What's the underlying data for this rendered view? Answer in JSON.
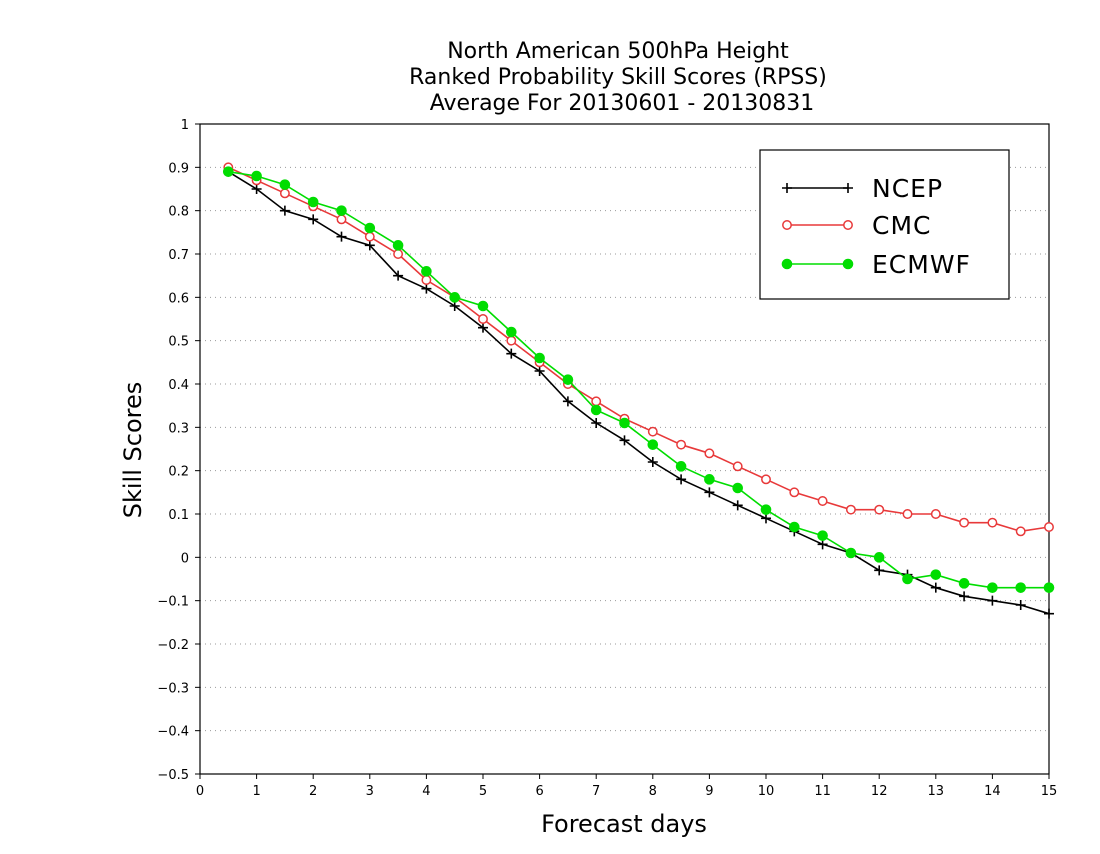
{
  "chart_data": {
    "type": "line",
    "title_lines": [
      "North American 500hPa Height",
      "Ranked Probability Skill Scores (RPSS)",
      "Average For 20130601 - 20130831"
    ],
    "xlabel": "Forecast days",
    "ylabel": "Skill Scores",
    "xlim": [
      0,
      15
    ],
    "ylim": [
      -0.5,
      1
    ],
    "x_ticks": [
      0,
      1,
      2,
      3,
      4,
      5,
      6,
      7,
      8,
      9,
      10,
      11,
      12,
      13,
      14,
      15
    ],
    "x_tick_labels": [
      "0",
      "1",
      "2",
      "3",
      "4",
      "5",
      "6",
      "7",
      "8",
      "9",
      "10",
      "11",
      "12",
      "13",
      "14",
      "15"
    ],
    "y_ticks": [
      1,
      0.9,
      0.8,
      0.7,
      0.6,
      0.5,
      0.4,
      0.3,
      0.2,
      0.1,
      0,
      -0.1,
      -0.2,
      -0.3,
      -0.4,
      -0.5
    ],
    "y_tick_labels": [
      "1",
      "0.9",
      "0.8",
      "0.7",
      "0.6",
      "0.5",
      "0.4",
      "0.3",
      "0.2",
      "0.1",
      "0",
      "−0.1",
      "−0.2",
      "−0.3",
      "−0.4",
      "−0.5"
    ],
    "grid": "horizontal dotted",
    "legend_position": "top-right",
    "x": [
      0.5,
      1.0,
      1.5,
      2.0,
      2.5,
      3.0,
      3.5,
      4.0,
      4.5,
      5.0,
      5.5,
      6.0,
      6.5,
      7.0,
      7.5,
      8.0,
      8.5,
      9.0,
      9.5,
      10.0,
      10.5,
      11.0,
      11.5,
      12.0,
      12.5,
      13.0,
      13.5,
      14.0,
      14.5,
      15.0
    ],
    "series": [
      {
        "name": "NCEP",
        "color": "#000000",
        "marker": "plus",
        "values": [
          0.89,
          0.85,
          0.8,
          0.78,
          0.74,
          0.72,
          0.65,
          0.62,
          0.58,
          0.53,
          0.47,
          0.43,
          0.36,
          0.31,
          0.27,
          0.22,
          0.18,
          0.15,
          0.12,
          0.09,
          0.06,
          0.03,
          0.01,
          -0.03,
          -0.04,
          -0.07,
          -0.09,
          -0.1,
          -0.11,
          -0.13
        ]
      },
      {
        "name": "CMC",
        "color": "#e8393a",
        "marker": "open-circle",
        "values": [
          0.9,
          0.87,
          0.84,
          0.81,
          0.78,
          0.74,
          0.7,
          0.64,
          0.6,
          0.55,
          0.5,
          0.45,
          0.4,
          0.36,
          0.32,
          0.29,
          0.26,
          0.24,
          0.21,
          0.18,
          0.15,
          0.13,
          0.11,
          0.11,
          0.1,
          0.1,
          0.08,
          0.08,
          0.06,
          0.07
        ]
      },
      {
        "name": "ECMWF",
        "color": "#00dd00",
        "marker": "filled-circle",
        "values": [
          0.89,
          0.88,
          0.86,
          0.82,
          0.8,
          0.76,
          0.72,
          0.66,
          0.6,
          0.58,
          0.52,
          0.46,
          0.41,
          0.34,
          0.31,
          0.26,
          0.21,
          0.18,
          0.16,
          0.11,
          0.07,
          0.05,
          0.01,
          0.0,
          -0.05,
          -0.04,
          -0.06,
          -0.07,
          -0.07,
          -0.07
        ]
      }
    ]
  }
}
